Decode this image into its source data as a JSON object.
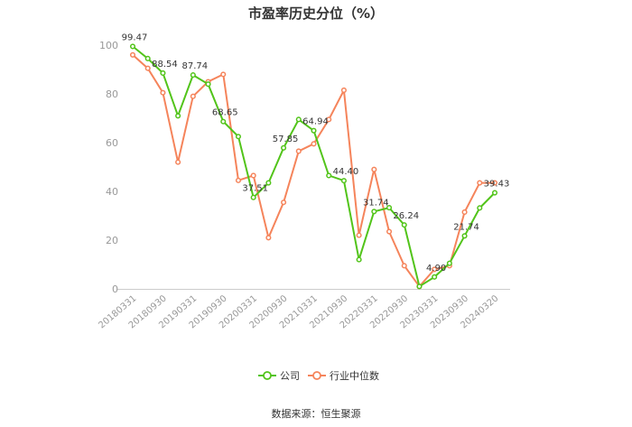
{
  "chart_data": {
    "type": "line",
    "title": "市盈率历史分位（%）",
    "ylim": [
      0,
      100
    ],
    "yticks": [
      0,
      20,
      40,
      60,
      80,
      100
    ],
    "x": [
      "20180331",
      "20180630",
      "20180930",
      "20181231",
      "20190331",
      "20190630",
      "20190930",
      "20191231",
      "20200331",
      "20200630",
      "20200930",
      "20201231",
      "20210331",
      "20210630",
      "20210930",
      "20211231",
      "20220331",
      "20220630",
      "20220930",
      "20221231",
      "20230331",
      "20230630",
      "20230930",
      "20231231",
      "20240320"
    ],
    "xticks": [
      "20180331",
      "20180930",
      "20190331",
      "20190930",
      "20200331",
      "20200930",
      "20210331",
      "20210930",
      "20220331",
      "20220930",
      "20230331",
      "20230930",
      "20240320"
    ],
    "series": [
      {
        "name": "公司",
        "color": "#52c41a",
        "values": [
          99.47,
          94.5,
          88.54,
          71.0,
          87.74,
          84.0,
          68.65,
          62.5,
          37.51,
          43.5,
          57.85,
          69.5,
          64.94,
          46.5,
          44.4,
          12.0,
          31.74,
          33.3,
          26.24,
          1.0,
          4.9,
          10.5,
          21.74,
          33.2,
          39.43
        ]
      },
      {
        "name": "行业中位数",
        "color": "#f5845b",
        "values": [
          96.0,
          90.5,
          80.5,
          52.0,
          79.0,
          85.0,
          88.0,
          44.5,
          46.5,
          21.0,
          35.5,
          56.5,
          59.5,
          69.5,
          81.5,
          22.0,
          49.0,
          23.5,
          9.5,
          1.0,
          8.0,
          9.5,
          31.5,
          43.5,
          43.5
        ]
      }
    ],
    "data_labels": [
      {
        "index": 0,
        "text": "99.47"
      },
      {
        "index": 2,
        "text": "88.54"
      },
      {
        "index": 4,
        "text": "87.74"
      },
      {
        "index": 6,
        "text": "68.65"
      },
      {
        "index": 8,
        "text": "37.51"
      },
      {
        "index": 10,
        "text": "57.85"
      },
      {
        "index": 12,
        "text": "64.94"
      },
      {
        "index": 14,
        "text": "44.40"
      },
      {
        "index": 16,
        "text": "31.74"
      },
      {
        "index": 18,
        "text": "26.24"
      },
      {
        "index": 20,
        "text": "4.90"
      },
      {
        "index": 22,
        "text": "21.74"
      },
      {
        "index": 24,
        "text": "39.43"
      }
    ],
    "legend_position": "bottom-center",
    "grid": false
  },
  "source_text": "数据来源：恒生聚源"
}
